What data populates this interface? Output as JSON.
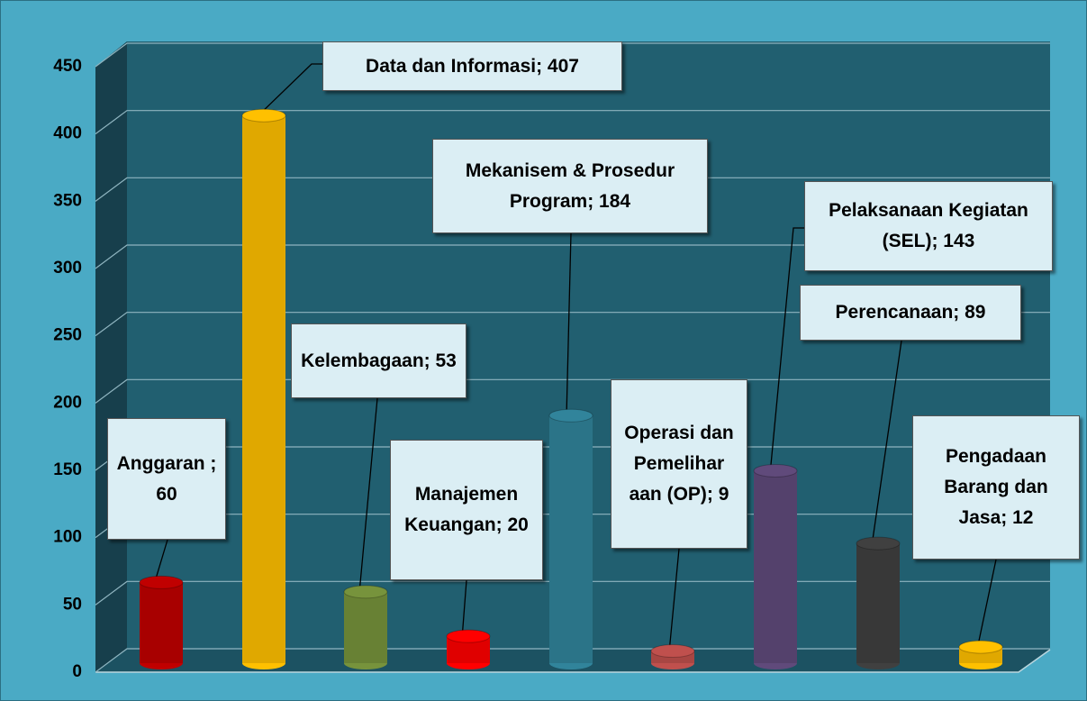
{
  "chart_data": {
    "type": "bar",
    "value_labels": [
      "Anggaran ; 60",
      "Data dan Informasi; 407",
      "Kelembagaan; 53",
      "Manajemen Keuangan; 20",
      "Mekanisem & Prosedur Program; 184",
      "Operasi dan Pemelihar aan (OP); 9",
      "Pelaksanaan Kegiatan (SEL); 143",
      "Perencanaan; 89",
      "Pengadaan Barang dan Jasa; 12"
    ],
    "values": [
      60,
      407,
      53,
      20,
      184,
      9,
      143,
      89,
      12
    ],
    "colors": [
      "#c00000",
      "#ffc000",
      "#77933c",
      "#ff0000",
      "#31849b",
      "#c0504d",
      "#604a7b",
      "#404040",
      "#ffc000"
    ],
    "ylim": [
      0,
      450
    ],
    "yticks": [
      0,
      50,
      100,
      150,
      200,
      250,
      300,
      350,
      400,
      450
    ],
    "grid": true
  }
}
